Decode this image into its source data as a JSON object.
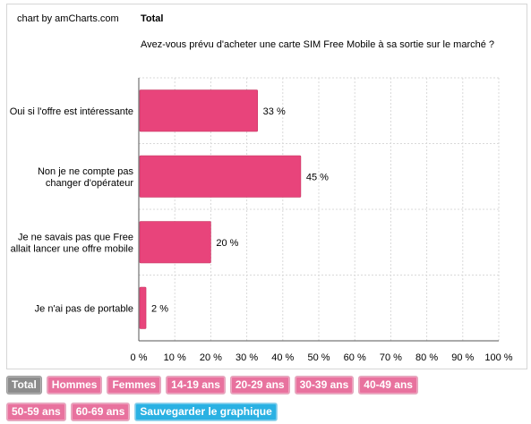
{
  "credit": "chart by amCharts.com",
  "title": "Total",
  "subtitle": "Avez-vous prévu d'acheter une carte SIM Free Mobile à sa sortie sur le marché ?",
  "colors": {
    "bar": "#e8447b",
    "bar_edge": "#c7305f",
    "grid": "#d9d9d9",
    "axis": "#555555",
    "text": "#000000"
  },
  "chart_data": {
    "type": "bar",
    "orientation": "horizontal",
    "categories": [
      [
        "Oui si l'offre est intéressante"
      ],
      [
        "Non je ne compte pas",
        "changer d'opérateur"
      ],
      [
        "Je ne savais pas que Free",
        "allait lancer une offre mobile"
      ],
      [
        "Je n'ai pas de portable"
      ]
    ],
    "values": [
      33,
      45,
      20,
      2
    ],
    "value_labels": [
      "33 %",
      "45 %",
      "20 %",
      "2 %"
    ],
    "xlim": [
      0,
      100
    ],
    "x_ticks": [
      0,
      10,
      20,
      30,
      40,
      50,
      60,
      70,
      80,
      90,
      100
    ],
    "x_tick_labels": [
      "0 %",
      "10 %",
      "20 %",
      "30 %",
      "40 %",
      "50 %",
      "60 %",
      "70 %",
      "80 %",
      "90 %",
      "100 %"
    ],
    "grid": true
  },
  "filters": {
    "row1": [
      "Total",
      "Hommes",
      "Femmes",
      "14-19 ans",
      "20-29 ans",
      "30-39 ans",
      "40-49 ans"
    ],
    "row2": [
      "50-59 ans",
      "60-69 ans"
    ],
    "active": "Total",
    "save_label": "Sauvegarder le graphique"
  }
}
